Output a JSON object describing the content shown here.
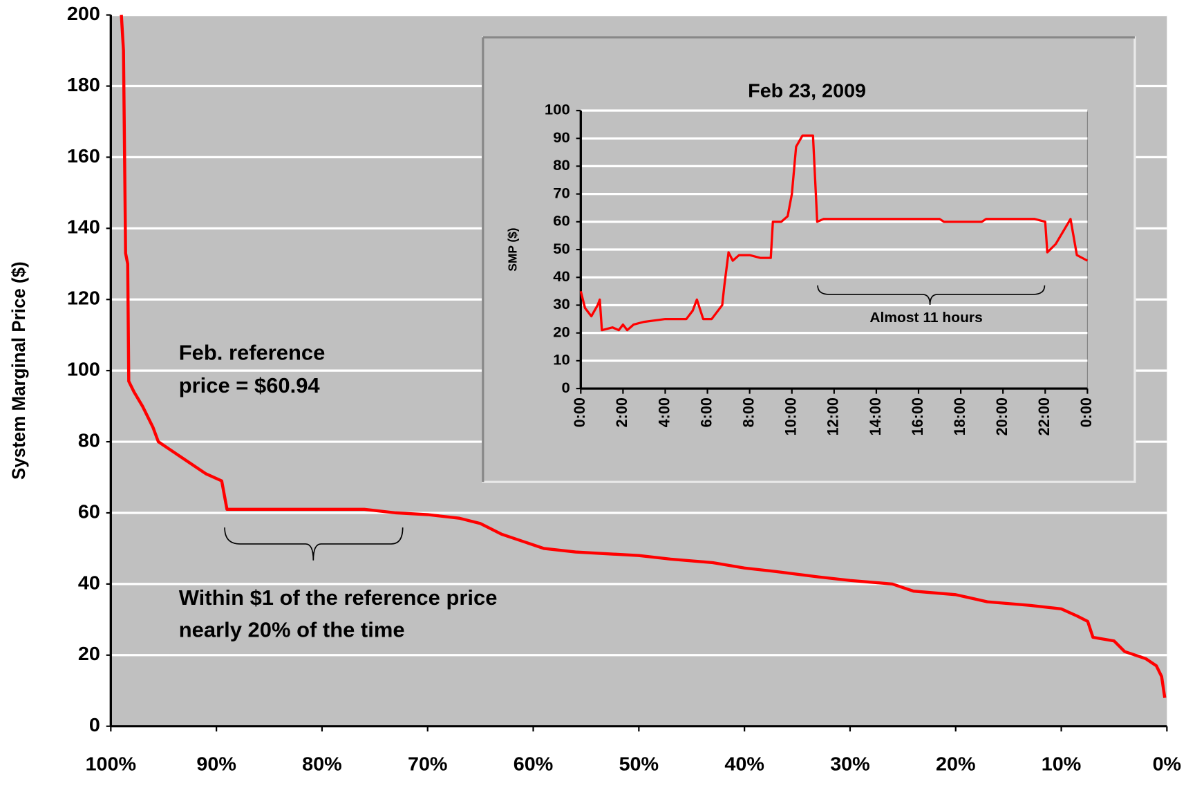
{
  "chart_data": [
    {
      "type": "line",
      "y_label": "System Marginal Price ($)",
      "annotations": [
        "Feb. reference",
        "price = $60.94",
        "Within $1 of the reference price",
        "nearly 20% of the time"
      ],
      "xlim": [
        100,
        0
      ],
      "xticks": [
        {
          "value": 100,
          "label": "100%"
        },
        {
          "value": 90,
          "label": "90%"
        },
        {
          "value": 80,
          "label": "80%"
        },
        {
          "value": 70,
          "label": "70%"
        },
        {
          "value": 60,
          "label": "60%"
        },
        {
          "value": 50,
          "label": "50%"
        },
        {
          "value": 40,
          "label": "40%"
        },
        {
          "value": 30,
          "label": "30%"
        },
        {
          "value": 20,
          "label": "20%"
        },
        {
          "value": 10,
          "label": "10%"
        },
        {
          "value": 0,
          "label": "0%"
        }
      ],
      "ylim": [
        0,
        200
      ],
      "yticks": [
        0,
        20,
        40,
        60,
        80,
        100,
        120,
        140,
        160,
        180,
        200
      ],
      "grid": true,
      "x": [
        99,
        98.8,
        98.6,
        98.4,
        98.3,
        97.8,
        97,
        96,
        95.5,
        94,
        92.5,
        91,
        89.5,
        89,
        83,
        76,
        73,
        70,
        67,
        65,
        63,
        61,
        59,
        56,
        50,
        47,
        43,
        40,
        37,
        33,
        30,
        26,
        24,
        20,
        17,
        13,
        10,
        8.5,
        7.5,
        7,
        5,
        4,
        2,
        1,
        0.5,
        0.2
      ],
      "series": [
        {
          "color": "#ff0000",
          "values": [
            200,
            190,
            133,
            130,
            97,
            94,
            90,
            84,
            80,
            77,
            74,
            71,
            69,
            61,
            61,
            61,
            60,
            59.5,
            58.5,
            57,
            54,
            52,
            50,
            49,
            48,
            47,
            46,
            44.5,
            43.5,
            42,
            41,
            40,
            38,
            37,
            35,
            34,
            33,
            31,
            29.5,
            25,
            24,
            21,
            19,
            17,
            14,
            8
          ]
        }
      ]
    },
    {
      "type": "line",
      "title": "Feb 23, 2009",
      "y_label": "SMP ($)",
      "annotations": [
        "Almost 11 hours"
      ],
      "xlim": [
        0,
        24
      ],
      "xticks": [
        {
          "value": 0,
          "label": "0:00"
        },
        {
          "value": 2,
          "label": "2:00"
        },
        {
          "value": 4,
          "label": "4:00"
        },
        {
          "value": 6,
          "label": "6:00"
        },
        {
          "value": 8,
          "label": "8:00"
        },
        {
          "value": 10,
          "label": "10:00"
        },
        {
          "value": 12,
          "label": "12:00"
        },
        {
          "value": 14,
          "label": "14:00"
        },
        {
          "value": 16,
          "label": "16:00"
        },
        {
          "value": 18,
          "label": "18:00"
        },
        {
          "value": 20,
          "label": "20:00"
        },
        {
          "value": 22,
          "label": "22:00"
        },
        {
          "value": 24,
          "label": "0:00"
        }
      ],
      "ylim": [
        0,
        100
      ],
      "yticks": [
        0,
        10,
        20,
        30,
        40,
        50,
        60,
        70,
        80,
        90,
        100
      ],
      "grid": true,
      "x": [
        0,
        0.2,
        0.5,
        0.8,
        0.9,
        1,
        1.5,
        1.8,
        2,
        2.2,
        2.5,
        3,
        4,
        5,
        5.3,
        5.5,
        5.8,
        6.2,
        6.7,
        6.8,
        7,
        7.2,
        7.5,
        8,
        8.5,
        9,
        9.1,
        9.5,
        9.8,
        10,
        10.2,
        10.5,
        11,
        11.2,
        11.5,
        17,
        17.2,
        19,
        19.2,
        21.5,
        22,
        22.1,
        22.5,
        23.2,
        23.5,
        24
      ],
      "series": [
        {
          "color": "#ff0000",
          "values": [
            35,
            29,
            26,
            30,
            32,
            21,
            22,
            21,
            23,
            21,
            23,
            24,
            25,
            25,
            28,
            32,
            25,
            25,
            30,
            37,
            49,
            46,
            48,
            48,
            47,
            47,
            60,
            60,
            62,
            70,
            87,
            91,
            91,
            60,
            61,
            61,
            60,
            60,
            61,
            61,
            60,
            49,
            52,
            61,
            48,
            46
          ]
        }
      ]
    }
  ]
}
